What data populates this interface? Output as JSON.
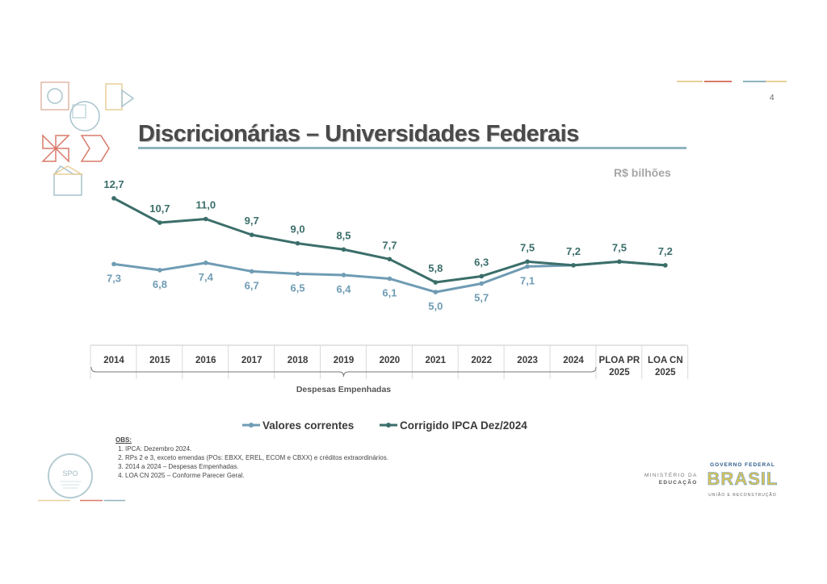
{
  "page_number": "4",
  "title": "Discricionárias – Universidades Federais",
  "unit_label": "R$ bilhões",
  "chart_data": {
    "type": "line",
    "categories": [
      "2014",
      "2015",
      "2016",
      "2017",
      "2018",
      "2019",
      "2020",
      "2021",
      "2022",
      "2023",
      "2024",
      "PLOA PR 2025",
      "LOA CN 2025"
    ],
    "category_lines": [
      [
        "2014"
      ],
      [
        "2015"
      ],
      [
        "2016"
      ],
      [
        "2017"
      ],
      [
        "2018"
      ],
      [
        "2019"
      ],
      [
        "2020"
      ],
      [
        "2021"
      ],
      [
        "2022"
      ],
      [
        "2023"
      ],
      [
        "2024"
      ],
      [
        "PLOA PR",
        "2025"
      ],
      [
        "LOA CN",
        "2025"
      ]
    ],
    "series": [
      {
        "name": "Valores correntes",
        "color": "#6f9cb4",
        "values": [
          7.3,
          6.8,
          7.4,
          6.7,
          6.5,
          6.4,
          6.1,
          5.0,
          5.7,
          7.1,
          7.2,
          7.5,
          7.2
        ],
        "labels": [
          "7,3",
          "6,8",
          "7,4",
          "6,7",
          "6,5",
          "6,4",
          "6,1",
          "5,0",
          "5,7",
          "7,1",
          "",
          "",
          ""
        ]
      },
      {
        "name": "Corrigido IPCA Dez/2024",
        "color": "#3b6e6a",
        "values": [
          12.7,
          10.7,
          11.0,
          9.7,
          9.0,
          8.5,
          7.7,
          5.8,
          6.3,
          7.5,
          7.2,
          7.5,
          7.2
        ],
        "labels": [
          "12,7",
          "10,7",
          "11,0",
          "9,7",
          "9,0",
          "8,5",
          "7,7",
          "5,8",
          "6,3",
          "7,5",
          "7,2",
          "7,5",
          "7,2"
        ]
      }
    ],
    "bracket_label": "Despesas Empenhadas",
    "bracket_range": [
      "2014",
      "2024"
    ],
    "legend_position": "bottom-center",
    "grid": false
  },
  "notes": {
    "heading": "OBS:",
    "items": [
      "IPCA: Dezembro 2024.",
      "RPs 2 e 3, exceto emendas (POs: EBXX, EREL, ECOM e CBXX) e créditos extraordinários.",
      "2014 a 2024 – Despesas Empenhadas.",
      "LOA CN 2025 – Conforme Parecer Geral."
    ]
  },
  "logos": {
    "spo": "SPO",
    "ministry_line1": "MINISTÉRIO DA",
    "ministry_line2": "EDUCAÇÃO",
    "gov_top": "GOVERNO FEDERAL",
    "gov_main": "BRASIL",
    "gov_bottom": "UNIÃO E RECONSTRUÇÃO"
  },
  "colors": {
    "title": "#4a4a4a",
    "accent": "#8fb3bd",
    "dark_series": "#3b6e6a",
    "light_series": "#6f9cb4"
  }
}
